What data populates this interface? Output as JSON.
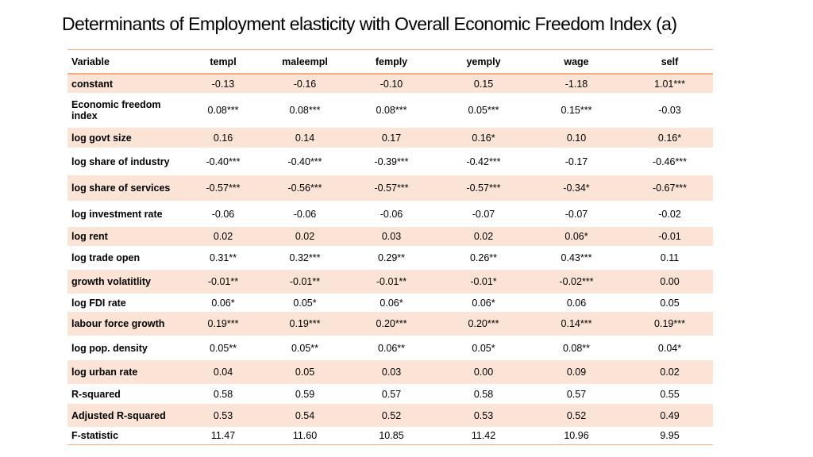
{
  "title": "Determinants of Employment elasticity with Overall Economic Freedom Index (a)",
  "table": {
    "headers": [
      "Variable",
      "templ",
      "maleempl",
      "femply",
      "yemply",
      "wage",
      "self"
    ],
    "rows": [
      {
        "label": "constant",
        "values": [
          "-0.13",
          "-0.16",
          "-0.10",
          "0.15",
          "-1.18",
          "1.01***"
        ],
        "shaded": true
      },
      {
        "label": "Economic freedom index",
        "values": [
          "0.08***",
          "0.08***",
          "0.08***",
          "0.05***",
          "0.15***",
          "-0.03"
        ],
        "shaded": false
      },
      {
        "label": "log govt size",
        "values": [
          "0.16",
          "0.14",
          "0.17",
          "0.16*",
          "0.10",
          "0.16*"
        ],
        "shaded": true
      },
      {
        "label": "log share of industry",
        "values": [
          "-0.40***",
          "-0.40***",
          "-0.39***",
          "-0.42***",
          "-0.17",
          "-0.46***"
        ],
        "shaded": false
      },
      {
        "label": "log share of services",
        "values": [
          "-0.57***",
          "-0.56***",
          "-0.57***",
          "-0.57***",
          "-0.34*",
          "-0.67***"
        ],
        "shaded": true
      },
      {
        "label": "log investment rate",
        "values": [
          "-0.06",
          "-0.06",
          "-0.06",
          "-0.07",
          "-0.07",
          "-0.02"
        ],
        "shaded": false
      },
      {
        "label": "log rent",
        "values": [
          "0.02",
          "0.02",
          "0.03",
          "0.02",
          "0.06*",
          "-0.01"
        ],
        "shaded": true
      },
      {
        "label": "log trade open",
        "values": [
          "0.31**",
          "0.32***",
          "0.29**",
          "0.26**",
          "0.43***",
          "0.11"
        ],
        "shaded": false
      },
      {
        "label": "growth volatitlity",
        "values": [
          "-0.01**",
          "-0.01**",
          "-0.01**",
          "-0.01*",
          "-0.02***",
          "0.00"
        ],
        "shaded": true
      },
      {
        "label": "log FDI rate",
        "values": [
          "0.06*",
          "0.05*",
          "0.06*",
          "0.06*",
          "0.06",
          "0.05"
        ],
        "shaded": false
      },
      {
        "label": "labour force growth",
        "values": [
          "0.19***",
          "0.19***",
          "0.20***",
          "0.20***",
          "0.14***",
          "0.19***"
        ],
        "shaded": true
      },
      {
        "label": "log pop. density",
        "values": [
          "0.05**",
          "0.05**",
          "0.06**",
          "0.05*",
          "0.08**",
          "0.04*"
        ],
        "shaded": false
      },
      {
        "label": "log urban rate",
        "values": [
          "0.04",
          "0.05",
          "0.03",
          "0.00",
          "0.09",
          "0.02"
        ],
        "shaded": true
      },
      {
        "label": "R-squared",
        "values": [
          "0.58",
          "0.59",
          "0.57",
          "0.58",
          "0.57",
          "0.55"
        ],
        "shaded": false
      },
      {
        "label": "Adjusted R-squared",
        "values": [
          "0.53",
          "0.54",
          "0.52",
          "0.53",
          "0.52",
          "0.49"
        ],
        "shaded": true
      },
      {
        "label": "F-statistic",
        "values": [
          "11.47",
          "11.60",
          "10.85",
          "11.42",
          "10.96",
          "9.95"
        ],
        "shaded": false
      }
    ]
  },
  "colors": {
    "shade": "#fbe4d5",
    "rule": "#f4b183"
  }
}
